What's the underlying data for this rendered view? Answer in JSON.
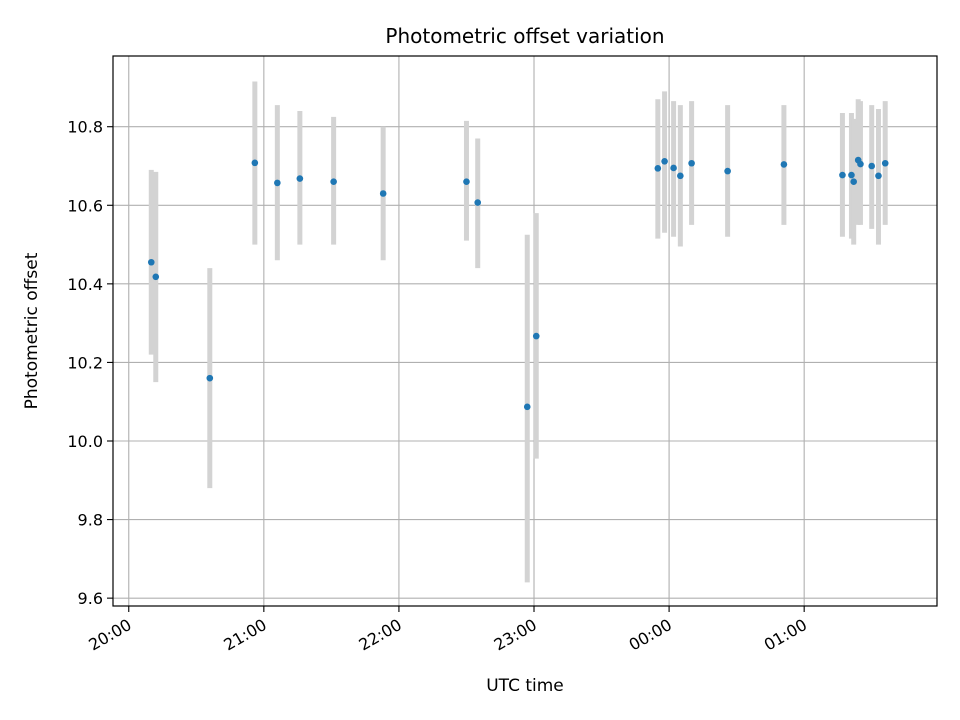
{
  "chart_data": {
    "type": "scatter",
    "title": "Photometric offset variation",
    "xlabel": "UTC time",
    "ylabel": "Photometric offset",
    "grid": true,
    "x_is_time": true,
    "x_range": [
      "19:53",
      "25:59"
    ],
    "ylim": [
      9.58,
      10.98
    ],
    "x_ticks": [
      {
        "time": "20:00",
        "label": "20:00"
      },
      {
        "time": "21:00",
        "label": "21:00"
      },
      {
        "time": "22:00",
        "label": "22:00"
      },
      {
        "time": "23:00",
        "label": "23:00"
      },
      {
        "time": "24:00",
        "label": "00:00"
      },
      {
        "time": "25:00",
        "label": "01:00"
      }
    ],
    "y_ticks": [
      {
        "value": 9.6,
        "label": "9.6"
      },
      {
        "value": 9.8,
        "label": "9.8"
      },
      {
        "value": 10.0,
        "label": "10.0"
      },
      {
        "value": 10.2,
        "label": "10.2"
      },
      {
        "value": 10.4,
        "label": "10.4"
      },
      {
        "value": 10.6,
        "label": "10.6"
      },
      {
        "value": 10.8,
        "label": "10.8"
      }
    ],
    "colors": {
      "point": "#1f77b4",
      "errorbar": "#d3d3d3",
      "grid": "#b0b0b0"
    },
    "points": [
      {
        "time": "20:10",
        "y": 10.455,
        "err_low": 10.22,
        "err_high": 10.69
      },
      {
        "time": "20:12",
        "y": 10.418,
        "err_low": 10.15,
        "err_high": 10.685
      },
      {
        "time": "20:36",
        "y": 10.16,
        "err_low": 9.88,
        "err_high": 10.44
      },
      {
        "time": "20:56",
        "y": 10.708,
        "err_low": 10.5,
        "err_high": 10.915
      },
      {
        "time": "21:06",
        "y": 10.657,
        "err_low": 10.46,
        "err_high": 10.855
      },
      {
        "time": "21:16",
        "y": 10.668,
        "err_low": 10.5,
        "err_high": 10.84
      },
      {
        "time": "21:31",
        "y": 10.66,
        "err_low": 10.5,
        "err_high": 10.825
      },
      {
        "time": "21:53",
        "y": 10.63,
        "err_low": 10.46,
        "err_high": 10.8
      },
      {
        "time": "22:30",
        "y": 10.66,
        "err_low": 10.51,
        "err_high": 10.815
      },
      {
        "time": "22:35",
        "y": 10.607,
        "err_low": 10.44,
        "err_high": 10.77
      },
      {
        "time": "22:57",
        "y": 10.087,
        "err_low": 9.64,
        "err_high": 10.525
      },
      {
        "time": "23:01",
        "y": 10.267,
        "err_low": 9.955,
        "err_high": 10.58
      },
      {
        "time": "23:55",
        "y": 10.694,
        "err_low": 10.515,
        "err_high": 10.87
      },
      {
        "time": "23:58",
        "y": 10.712,
        "err_low": 10.53,
        "err_high": 10.89
      },
      {
        "time": "24:02",
        "y": 10.695,
        "err_low": 10.52,
        "err_high": 10.865
      },
      {
        "time": "24:05",
        "y": 10.675,
        "err_low": 10.495,
        "err_high": 10.855
      },
      {
        "time": "24:10",
        "y": 10.707,
        "err_low": 10.55,
        "err_high": 10.865
      },
      {
        "time": "24:26",
        "y": 10.687,
        "err_low": 10.52,
        "err_high": 10.855
      },
      {
        "time": "24:51",
        "y": 10.704,
        "err_low": 10.55,
        "err_high": 10.855
      },
      {
        "time": "25:17",
        "y": 10.677,
        "err_low": 10.52,
        "err_high": 10.835
      },
      {
        "time": "25:21",
        "y": 10.677,
        "err_low": 10.515,
        "err_high": 10.835
      },
      {
        "time": "25:22",
        "y": 10.66,
        "err_low": 10.5,
        "err_high": 10.82
      },
      {
        "time": "25:24",
        "y": 10.715,
        "err_low": 10.55,
        "err_high": 10.87
      },
      {
        "time": "25:25",
        "y": 10.705,
        "err_low": 10.55,
        "err_high": 10.865
      },
      {
        "time": "25:30",
        "y": 10.7,
        "err_low": 10.54,
        "err_high": 10.855
      },
      {
        "time": "25:33",
        "y": 10.675,
        "err_low": 10.5,
        "err_high": 10.845
      },
      {
        "time": "25:36",
        "y": 10.707,
        "err_low": 10.55,
        "err_high": 10.865
      }
    ]
  }
}
